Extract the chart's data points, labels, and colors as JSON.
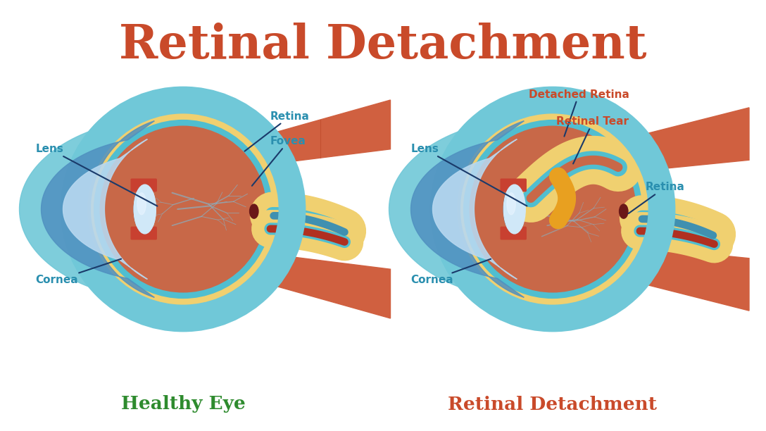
{
  "title": "Retinal Detachment",
  "title_color": "#C94A2A",
  "title_fontsize": 48,
  "bg_color": "#FFFFFF",
  "teal": "#2A8FAF",
  "red_label": "#C94A2A",
  "green": "#2E8B2E",
  "healthy_eye_label": "Healthy Eye",
  "detachment_label": "Retinal Detachment",
  "colors": {
    "sclera": "#E07050",
    "choroid": "#C84830",
    "vitreous": "#C86848",
    "retina_yellow": "#F0D070",
    "retina_cyan": "#50BED0",
    "cornea_teal_outer": "#70C8D8",
    "cornea_blue_mid": "#5090C0",
    "cornea_light_inner": "#B8D8F0",
    "cornea_white": "#D8EEF8",
    "lens_white": "#D0E8F8",
    "lens_dark": "#1A1A2A",
    "iris_red": "#C84030",
    "muscle": "#D06040",
    "muscle_dark": "#B84020",
    "vessel": "#8AAFC0",
    "fovea": "#6A1818",
    "nerve_red": "#B03020",
    "nerve_blue": "#4090B0",
    "tear_orange": "#E8A020"
  }
}
